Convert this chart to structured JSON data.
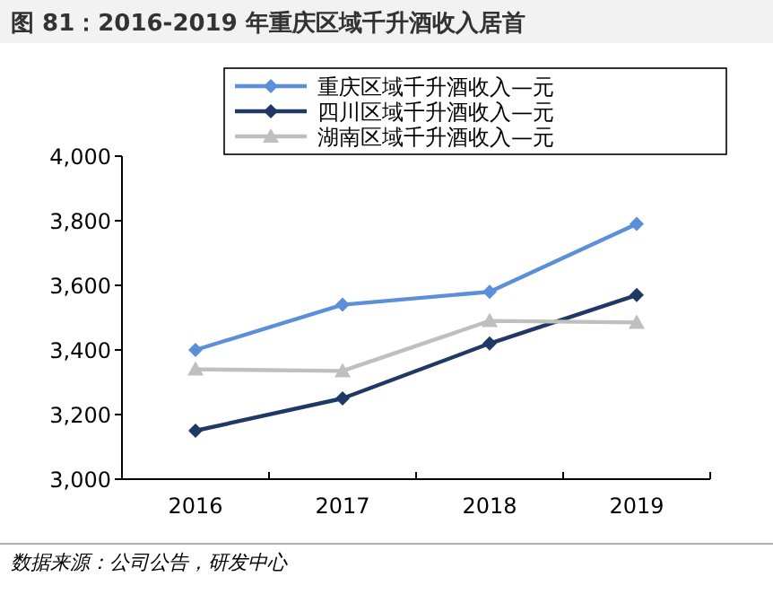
{
  "chart_data": {
    "type": "line",
    "title": "图 81：2016-2019 年重庆区域千升酒收入居首",
    "categories": [
      "2016",
      "2017",
      "2018",
      "2019"
    ],
    "series": [
      {
        "name": "重庆区域千升酒收入—元",
        "color": "#5b8fd8",
        "marker": "diamond",
        "values": [
          3400,
          3540,
          3580,
          3790
        ]
      },
      {
        "name": "四川区域千升酒收入—元",
        "color": "#1f3864",
        "marker": "diamond",
        "values": [
          3150,
          3250,
          3420,
          3570
        ]
      },
      {
        "name": "湖南区域千升酒收入—元",
        "color": "#bfbfbf",
        "marker": "triangle",
        "values": [
          3340,
          3335,
          3490,
          3485
        ]
      }
    ],
    "ylim": [
      3000,
      4000
    ],
    "yticks": [
      {
        "value": 3000,
        "label": "3,000"
      },
      {
        "value": 3200,
        "label": "3,200"
      },
      {
        "value": 3400,
        "label": "3,400"
      },
      {
        "value": 3600,
        "label": "3,600"
      },
      {
        "value": 3800,
        "label": "3,800"
      },
      {
        "value": 4000,
        "label": "4,000"
      }
    ],
    "legend": "top",
    "annotations": [
      "数据来源：公司公告，研发中心"
    ]
  }
}
